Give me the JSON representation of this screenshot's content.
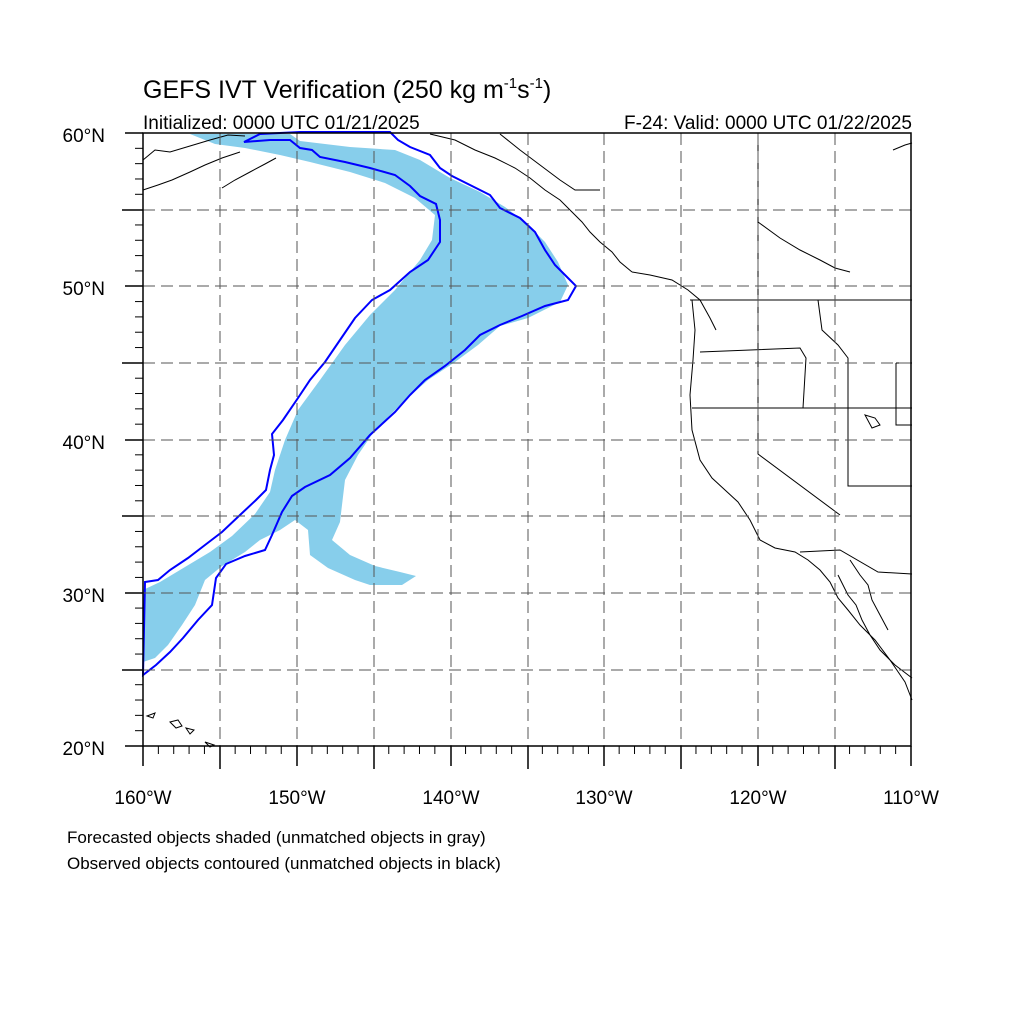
{
  "title": {
    "main": "GEFS IVT Verification (250 kg m",
    "exp1": "-1",
    "mid": "s",
    "exp2": "-1",
    "close": ")"
  },
  "initialized": "Initialized: 0000 UTC 01/21/2025",
  "valid": "F-24: Valid: 0000 UTC 01/22/2025",
  "lat_labels": [
    "60°N",
    "50°N",
    "40°N",
    "30°N",
    "20°N"
  ],
  "lon_labels": [
    "160°W",
    "150°W",
    "140°W",
    "130°W",
    "120°W",
    "110°W"
  ],
  "footnotes": [
    "Forecasted objects shaded (unmatched objects in gray)",
    "Observed objects contoured (unmatched objects in black)"
  ],
  "map": {
    "lon_range": [
      -160,
      -110
    ],
    "lat_range": [
      20,
      60
    ],
    "forecast_fill_color": "#87ceeb",
    "observed_contour_color": "#0000ff",
    "grid_style": "dashed gray"
  }
}
